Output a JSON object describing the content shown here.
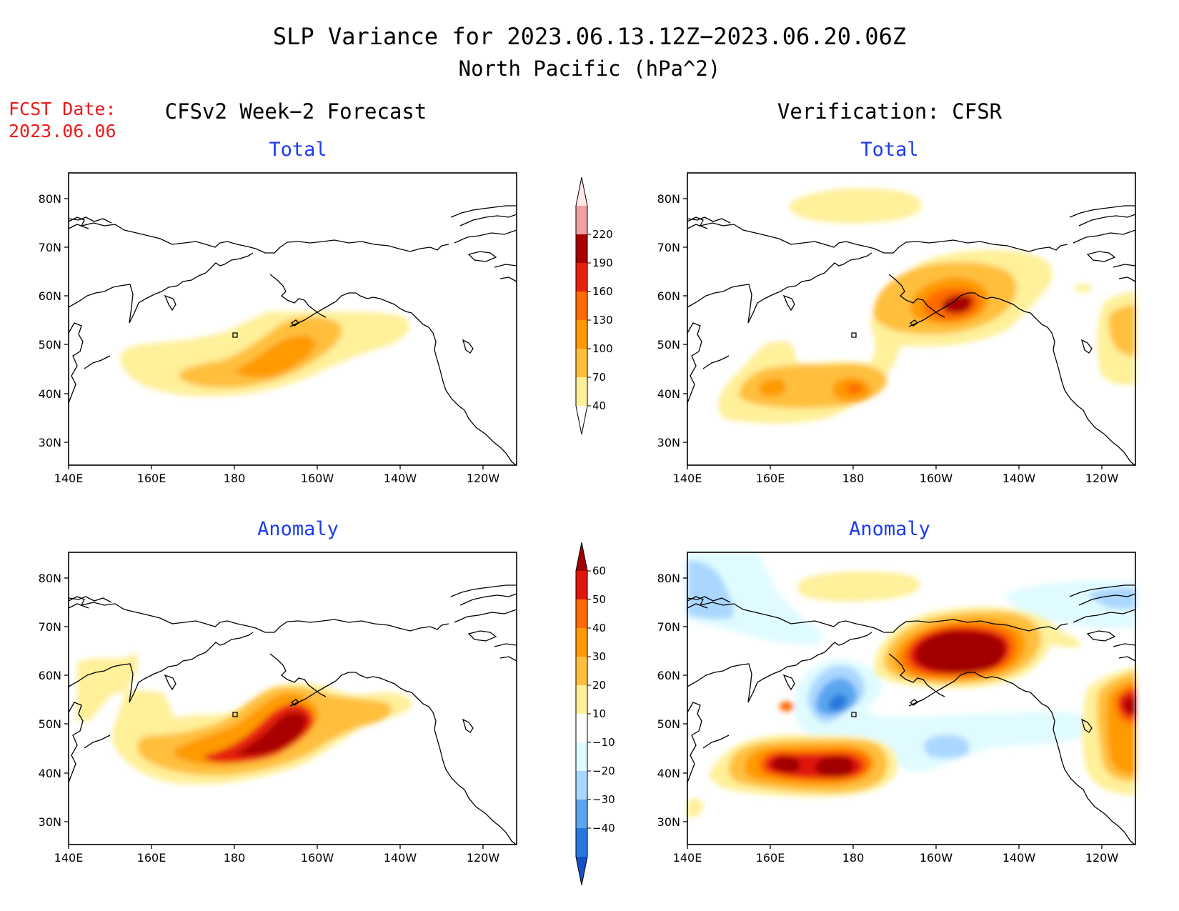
{
  "title": {
    "line1": "SLP Variance for 2023.06.13.12Z−2023.06.20.06Z",
    "line2": "North Pacific (hPa^2)"
  },
  "fcst_date": {
    "label": "FCST Date:",
    "value": "2023.06.06"
  },
  "columns": {
    "left": "CFSv2 Week−2 Forecast",
    "right": "Verification: CFSR"
  },
  "panel_labels": {
    "top": "Total",
    "bottom": "Anomaly"
  },
  "axes": {
    "lat_ticks": [
      "80N",
      "70N",
      "60N",
      "50N",
      "40N",
      "30N"
    ],
    "lon_ticks": [
      "140E",
      "160E",
      "180",
      "160W",
      "140W",
      "120W"
    ]
  },
  "colorbars": {
    "total": {
      "levels": [
        "40",
        "70",
        "100",
        "130",
        "160",
        "190",
        "220"
      ],
      "colors": [
        "#fff09a",
        "#ffbf3c",
        "#ff9a05",
        "#ff6a05",
        "#e6200e",
        "#a80000",
        "#f0a0a0",
        "#fde7e7"
      ]
    },
    "anomaly": {
      "levels": [
        "60",
        "50",
        "40",
        "30",
        "20",
        "10",
        "−10",
        "−20",
        "−30",
        "−40"
      ],
      "colors": [
        "#a00000",
        "#e01510",
        "#ff6a05",
        "#ff9a05",
        "#ffbf3c",
        "#fff09a",
        "#ffffff",
        "#e0fbff",
        "#aad7ff",
        "#5aa5ef",
        "#2878dc",
        "#1450c8"
      ]
    }
  },
  "colors": {
    "panel_label": "#1c3cf0",
    "fcst_date": "#f01818"
  }
}
